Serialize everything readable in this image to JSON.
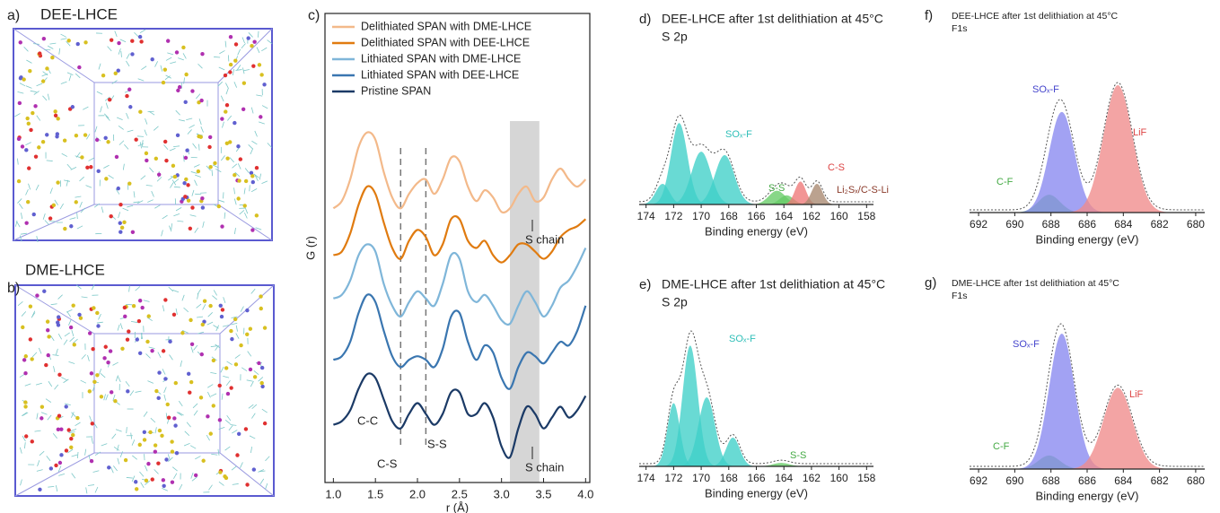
{
  "panels": [
    {
      "letter": "a)",
      "label": "DEE-LHCE"
    },
    {
      "letter": "b)",
      "label": "DME-LHCE"
    }
  ],
  "chart_data": [
    {
      "type": "line",
      "letter": "c)",
      "y_label": "G (r)",
      "x_label": "r (Å)",
      "xlim": [
        0.9,
        4.05
      ],
      "ylim": [
        0,
        13
      ],
      "xticks": [
        {
          "value": 1,
          "label": "1.0"
        },
        {
          "value": 1.5,
          "label": "1.5"
        },
        {
          "value": 2,
          "label": "2.0"
        },
        {
          "value": 2.5,
          "label": "2.5"
        },
        {
          "value": 3,
          "label": "3.0"
        },
        {
          "value": 3.5,
          "label": "3.5"
        },
        {
          "value": 4,
          "label": "4.0"
        }
      ],
      "x": [
        1.0,
        1.1,
        1.2,
        1.3,
        1.4,
        1.5,
        1.6,
        1.7,
        1.8,
        1.9,
        2.0,
        2.1,
        2.2,
        2.3,
        2.4,
        2.5,
        2.6,
        2.7,
        2.8,
        2.9,
        3.0,
        3.1,
        3.2,
        3.3,
        3.4,
        3.5,
        3.6,
        3.7,
        3.8,
        3.9,
        4.0
      ],
      "series": [
        {
          "name": "Delithiated SPAN with DME-LHCE",
          "color": "#f3b98a",
          "values": [
            7.6,
            7.8,
            8.4,
            9.3,
            9.7,
            9.5,
            8.6,
            7.9,
            7.6,
            8.0,
            8.3,
            8.4,
            8.0,
            8.4,
            9.0,
            8.9,
            8.2,
            7.8,
            8.1,
            7.9,
            7.5,
            7.6,
            8.0,
            8.2,
            7.8,
            7.9,
            8.4,
            8.7,
            8.4,
            8.2,
            8.4
          ]
        },
        {
          "name": "Delithiated SPAN with DEE-LHCE",
          "color": "#e07b10",
          "values": [
            6.3,
            6.4,
            6.9,
            7.7,
            8.2,
            8.0,
            7.2,
            6.5,
            6.2,
            6.7,
            7.0,
            6.8,
            6.3,
            6.6,
            7.3,
            7.3,
            6.7,
            6.5,
            6.7,
            6.3,
            6.1,
            6.3,
            6.6,
            6.6,
            6.4,
            6.2,
            6.4,
            6.8,
            7.0,
            7.1,
            7.3
          ]
        },
        {
          "name": "Lithiated SPAN with DME-LHCE",
          "color": "#7fb6d9",
          "values": [
            5.1,
            5.2,
            5.6,
            6.3,
            6.6,
            6.4,
            5.5,
            4.9,
            4.6,
            5.0,
            5.3,
            5.1,
            4.9,
            5.5,
            6.3,
            6.2,
            5.3,
            5.0,
            5.2,
            4.9,
            4.5,
            4.4,
            4.9,
            5.3,
            5.0,
            4.6,
            4.9,
            5.4,
            5.6,
            6.0,
            6.5
          ]
        },
        {
          "name": "Lithiated SPAN with DEE-LHCE",
          "color": "#3a76b0",
          "values": [
            3.4,
            3.5,
            3.9,
            4.7,
            5.2,
            5.0,
            4.2,
            3.5,
            3.2,
            3.4,
            3.5,
            3.4,
            3.2,
            3.7,
            4.6,
            4.7,
            3.9,
            3.4,
            3.8,
            3.6,
            2.9,
            2.6,
            3.2,
            3.6,
            3.5,
            3.3,
            3.6,
            3.9,
            3.8,
            4.2,
            4.9
          ]
        },
        {
          "name": "Pristine SPAN",
          "color": "#1b3a66",
          "values": [
            1.6,
            1.7,
            2.0,
            2.6,
            3.0,
            2.9,
            2.3,
            1.7,
            1.5,
            1.9,
            2.2,
            1.9,
            1.6,
            1.9,
            2.5,
            2.5,
            1.9,
            1.9,
            2.2,
            1.8,
            1.0,
            0.7,
            1.5,
            2.1,
            1.9,
            1.5,
            1.8,
            2.1,
            1.8,
            2.0,
            2.4
          ]
        }
      ],
      "reference_lines": [
        1.8,
        2.1
      ],
      "shaded_band": [
        3.1,
        3.45
      ],
      "annotations": [
        "C-C",
        "C-S",
        "S-S",
        "S chain",
        "S chain"
      ]
    },
    {
      "type": "spectrum",
      "letter": "d)",
      "title": "DEE-LHCE after 1st delithiation at 45°C",
      "subtitle": "S 2p",
      "x_label": "Binding energy (eV)",
      "xlim": [
        174.5,
        157.5
      ],
      "ylim": [
        0,
        10
      ],
      "xticks": [
        174,
        172,
        170,
        168,
        166,
        164,
        162,
        160,
        158
      ],
      "peaks": [
        {
          "center": 172.8,
          "height": 1.8,
          "width": 0.5,
          "color": "#3fd0c8"
        },
        {
          "center": 171.6,
          "height": 7.1,
          "width": 0.6,
          "color": "#3fd0c8"
        },
        {
          "center": 170.0,
          "height": 4.6,
          "width": 0.7,
          "color": "#3fd0c8"
        },
        {
          "center": 168.3,
          "height": 4.3,
          "width": 0.7,
          "color": "#3fd0c8"
        },
        {
          "center": 164.5,
          "height": 1.2,
          "width": 0.6,
          "color": "#66cc66"
        },
        {
          "center": 163.8,
          "height": 0.8,
          "width": 0.5,
          "color": "#66cc66"
        },
        {
          "center": 162.8,
          "height": 2.0,
          "width": 0.4,
          "color": "#ee7777"
        },
        {
          "center": 161.6,
          "height": 1.8,
          "width": 0.4,
          "color": "#a88870"
        }
      ],
      "annotations": [
        {
          "text": "SOₓ-F",
          "color": "#2fbfb8"
        },
        {
          "text": "S-S",
          "color": "#44aa44"
        },
        {
          "text": "C-S",
          "color": "#dd4444"
        },
        {
          "text": "Li₂Sₓ/C-S-Li",
          "color": "#8a3a2a"
        }
      ]
    },
    {
      "type": "spectrum",
      "letter": "e)",
      "title": "DME-LHCE after 1st delithiation at 45°C",
      "subtitle": "S 2p",
      "x_label": "Binding energy (eV)",
      "xlim": [
        174.5,
        157.5
      ],
      "ylim": [
        0,
        12
      ],
      "xticks": [
        174,
        172,
        170,
        168,
        166,
        164,
        162,
        160,
        158
      ],
      "peaks": [
        {
          "center": 172.0,
          "height": 5.5,
          "width": 0.45,
          "color": "#3fd0c8"
        },
        {
          "center": 170.8,
          "height": 10.5,
          "width": 0.55,
          "color": "#3fd0c8"
        },
        {
          "center": 169.6,
          "height": 6.0,
          "width": 0.6,
          "color": "#3fd0c8"
        },
        {
          "center": 167.7,
          "height": 2.5,
          "width": 0.5,
          "color": "#3fd0c8"
        },
        {
          "center": 164.2,
          "height": 0.3,
          "width": 0.6,
          "color": "#66cc66"
        }
      ],
      "annotations": [
        {
          "text": "SOₓ-F",
          "color": "#2fbfb8"
        },
        {
          "text": "S-S",
          "color": "#44aa44"
        }
      ]
    },
    {
      "type": "spectrum",
      "letter": "f)",
      "title": "DEE-LHCE after 1st delithiation at 45°C",
      "subtitle": "F1s",
      "x_label": "Binding energy (eV)",
      "xlim": [
        692.5,
        679.5
      ],
      "ylim": [
        0,
        10
      ],
      "xticks": [
        692,
        690,
        688,
        686,
        684,
        682,
        680
      ],
      "peaks": [
        {
          "center": 688.1,
          "height": 1.4,
          "width": 0.6,
          "color": "#66cc66"
        },
        {
          "center": 687.4,
          "height": 7.9,
          "width": 0.7,
          "color": "#8888f0"
        },
        {
          "center": 684.3,
          "height": 10,
          "width": 0.8,
          "color": "#f08a8a"
        }
      ],
      "annotations": [
        {
          "text": "SOₓ-F",
          "color": "#4444cc"
        },
        {
          "text": "LiF",
          "color": "#dd4444"
        },
        {
          "text": "C-F",
          "color": "#44aa44"
        }
      ]
    },
    {
      "type": "spectrum",
      "letter": "g)",
      "title": "DME-LHCE after 1st delithiation at 45°C",
      "subtitle": "F1s",
      "x_label": "Binding energy (eV)",
      "xlim": [
        692.5,
        679.5
      ],
      "ylim": [
        0,
        10
      ],
      "xticks": [
        692,
        690,
        688,
        686,
        684,
        682,
        680
      ],
      "peaks": [
        {
          "center": 688.1,
          "height": 1.0,
          "width": 0.6,
          "color": "#66cc66"
        },
        {
          "center": 687.4,
          "height": 10,
          "width": 0.7,
          "color": "#8888f0"
        },
        {
          "center": 684.3,
          "height": 6.0,
          "width": 0.8,
          "color": "#f08a8a"
        }
      ],
      "annotations": [
        {
          "text": "SOₓ-F",
          "color": "#4444cc"
        },
        {
          "text": "LiF",
          "color": "#dd4444"
        },
        {
          "text": "C-F",
          "color": "#44aa44"
        }
      ]
    }
  ]
}
